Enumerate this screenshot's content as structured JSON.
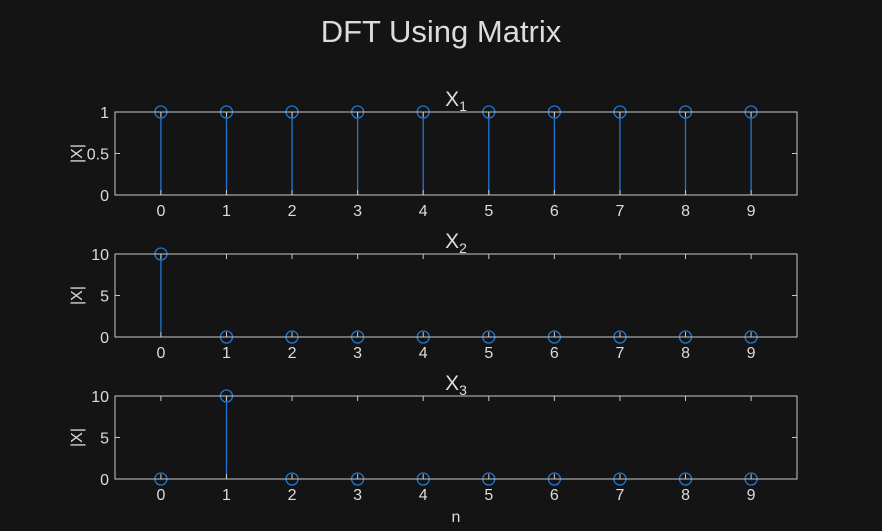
{
  "title": "DFT Using Matrix",
  "chart_data": [
    {
      "type": "stem",
      "title": {
        "base": "X",
        "sub": "1"
      },
      "xlabel": "",
      "ylabel": "|X|",
      "x": [
        0,
        1,
        2,
        3,
        4,
        5,
        6,
        7,
        8,
        9
      ],
      "values": [
        1,
        1,
        1,
        1,
        1,
        1,
        1,
        1,
        1,
        1
      ],
      "xlim": [
        -0.7,
        9.7
      ],
      "ylim": [
        0,
        1
      ],
      "yticks": [
        0,
        0.5,
        1
      ],
      "ytick_labels": [
        "0",
        "0.5",
        "1"
      ],
      "xticks": [
        0,
        1,
        2,
        3,
        4,
        5,
        6,
        7,
        8,
        9
      ],
      "xtick_labels": [
        "0",
        "1",
        "2",
        "3",
        "4",
        "5",
        "6",
        "7",
        "8",
        "9"
      ],
      "marker": "circle",
      "grid": false,
      "color": "#1f77d4"
    },
    {
      "type": "stem",
      "title": {
        "base": "X",
        "sub": "2"
      },
      "xlabel": "",
      "ylabel": "|X|",
      "x": [
        0,
        1,
        2,
        3,
        4,
        5,
        6,
        7,
        8,
        9
      ],
      "values": [
        10,
        0,
        0,
        0,
        0,
        0,
        0,
        0,
        0,
        0
      ],
      "xlim": [
        -0.7,
        9.7
      ],
      "ylim": [
        0,
        10
      ],
      "yticks": [
        0,
        5,
        10
      ],
      "ytick_labels": [
        "0",
        "5",
        "10"
      ],
      "xticks": [
        0,
        1,
        2,
        3,
        4,
        5,
        6,
        7,
        8,
        9
      ],
      "xtick_labels": [
        "0",
        "1",
        "2",
        "3",
        "4",
        "5",
        "6",
        "7",
        "8",
        "9"
      ],
      "marker": "circle",
      "grid": false,
      "color": "#1f77d4"
    },
    {
      "type": "stem",
      "title": {
        "base": "X",
        "sub": "3"
      },
      "xlabel": "n",
      "ylabel": "|X|",
      "x": [
        0,
        1,
        2,
        3,
        4,
        5,
        6,
        7,
        8,
        9
      ],
      "values": [
        0,
        10,
        0,
        0,
        0,
        0,
        0,
        0,
        0,
        0
      ],
      "xlim": [
        -0.7,
        9.7
      ],
      "ylim": [
        0,
        10
      ],
      "yticks": [
        0,
        5,
        10
      ],
      "ytick_labels": [
        "0",
        "5",
        "10"
      ],
      "xticks": [
        0,
        1,
        2,
        3,
        4,
        5,
        6,
        7,
        8,
        9
      ],
      "xtick_labels": [
        "0",
        "1",
        "2",
        "3",
        "4",
        "5",
        "6",
        "7",
        "8",
        "9"
      ],
      "marker": "circle",
      "grid": false,
      "color": "#1f77d4"
    }
  ]
}
